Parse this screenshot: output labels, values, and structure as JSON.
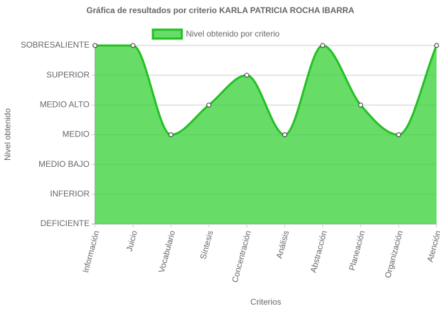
{
  "chart_data": {
    "type": "area",
    "title": "Gráfica de resultados por criterio KARLA PATRICIA ROCHA IBARRA",
    "x_label": "Criterios",
    "y_label": "Nivel obtenido",
    "categories": [
      "Información",
      "Juicio",
      "Vocabulario",
      "Síntesis",
      "Concentración",
      "Análisis",
      "Abstracción",
      "Planeación",
      "Organización",
      "Atención"
    ],
    "series": [
      {
        "name": "Nivel obtenido por criterio",
        "color": "#22c022",
        "values": [
          6,
          6,
          3,
          4,
          5,
          3,
          6,
          4,
          3,
          6
        ]
      }
    ],
    "ylim": [
      0,
      6
    ],
    "yticks": [
      {
        "value": 0,
        "label": "DEFICIENTE"
      },
      {
        "value": 1,
        "label": "INFERIOR"
      },
      {
        "value": 2,
        "label": "MEDIO BAJO"
      },
      {
        "value": 3,
        "label": "MEDIO"
      },
      {
        "value": 4,
        "label": "MEDIO ALTO"
      },
      {
        "value": 5,
        "label": "SUPERIOR"
      },
      {
        "value": 6,
        "label": "SOBRESALIENTE"
      }
    ],
    "grid": true
  }
}
